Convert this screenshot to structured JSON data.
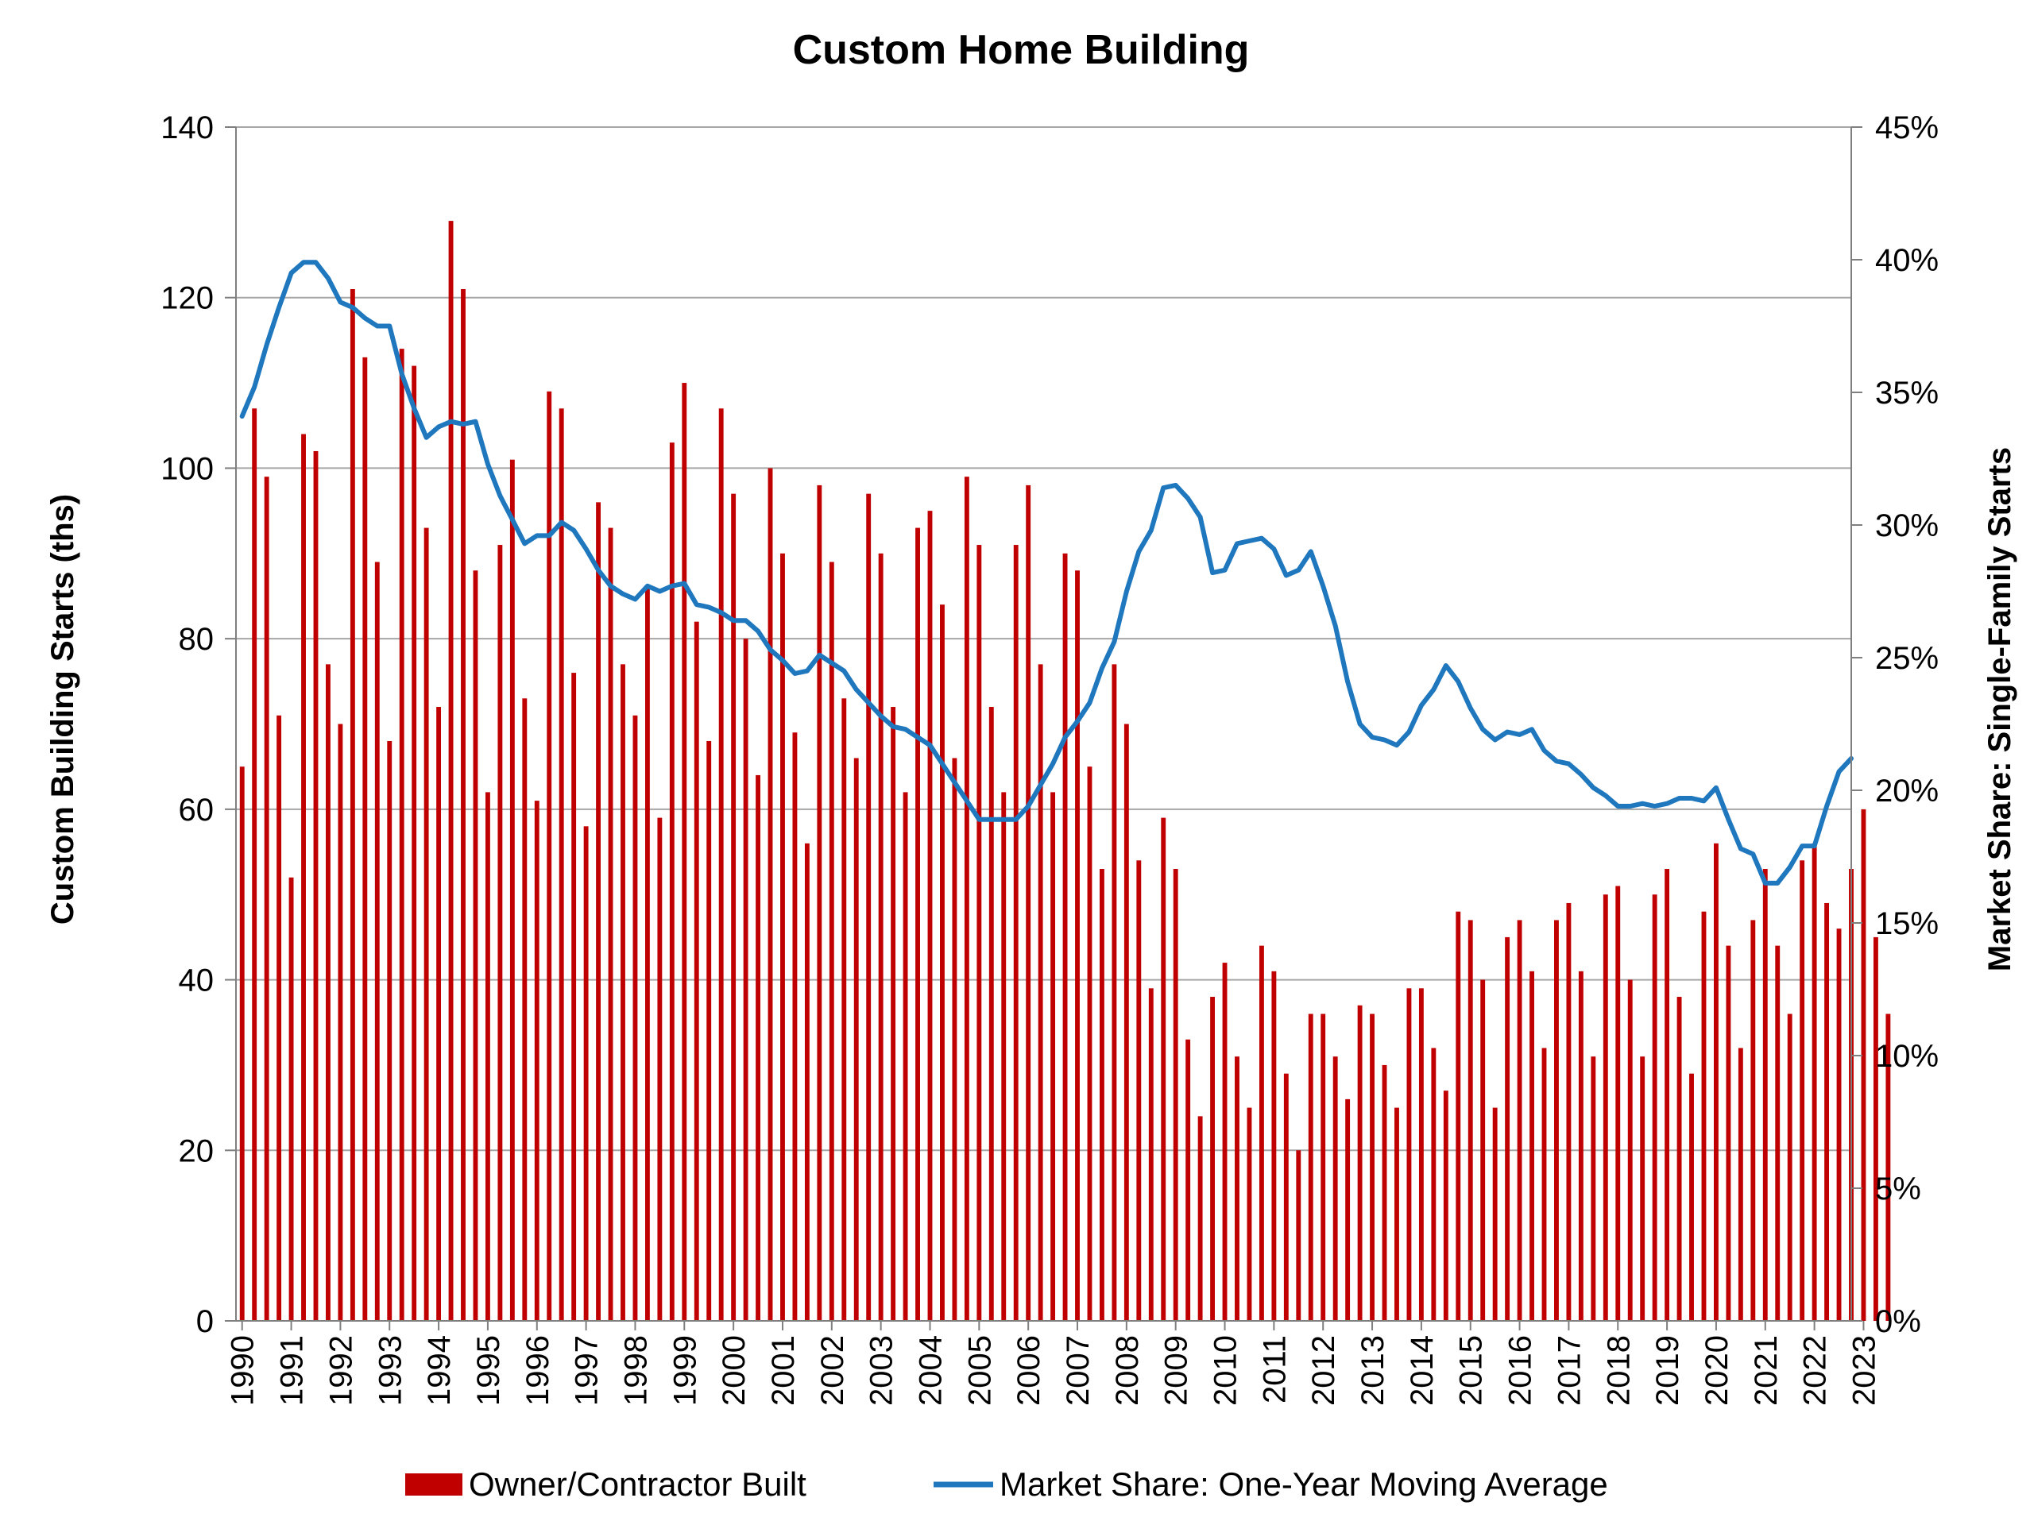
{
  "chart_data": {
    "type": "bar",
    "title": "Custom Home Building",
    "ylabel_left": "Custom Building Starts (ths)",
    "ylabel_right": "Market Share: Single-Family Starts",
    "ylim_left": [
      0,
      140
    ],
    "yticks_left": [
      "0",
      "20",
      "40",
      "60",
      "80",
      "100",
      "120",
      "140"
    ],
    "ylim_right": [
      0,
      0.45
    ],
    "yticks_right": [
      "0%",
      "5%",
      "10%",
      "15%",
      "20%",
      "25%",
      "30%",
      "35%",
      "40%",
      "45%"
    ],
    "x_start_year": 1990,
    "x_tick_labels": [
      "1990",
      "1991",
      "1992",
      "1993",
      "1994",
      "1995",
      "1996",
      "1997",
      "1998",
      "1999",
      "2000",
      "2001",
      "2002",
      "2003",
      "2004",
      "2005",
      "2006",
      "2007",
      "2008",
      "2009",
      "2010",
      "2011",
      "2012",
      "2013",
      "2014",
      "2015",
      "2016",
      "2017",
      "2018",
      "2019",
      "2020",
      "2021",
      "2022",
      "2023"
    ],
    "grid": true,
    "legend_position": "bottom",
    "colors": {
      "bars": "#C00000",
      "line": "#1F77BE",
      "grid": "#A6A6A6",
      "axis": "#7F7F7F"
    },
    "series": [
      {
        "name": "Owner/Contractor Built",
        "type": "bar",
        "axis": "left",
        "values": [
          65,
          107,
          99,
          71,
          52,
          104,
          102,
          77,
          70,
          121,
          113,
          89,
          68,
          114,
          112,
          93,
          72,
          129,
          121,
          88,
          62,
          91,
          101,
          73,
          61,
          109,
          107,
          76,
          58,
          96,
          93,
          77,
          71,
          86,
          59,
          103,
          110,
          82,
          68,
          107,
          97,
          80,
          64,
          100,
          90,
          69,
          56,
          98,
          89,
          73,
          66,
          97,
          90,
          72,
          62,
          93,
          95,
          84,
          66,
          99,
          91,
          72,
          62,
          91,
          98,
          77,
          62,
          90,
          88,
          65,
          53,
          77,
          70,
          54,
          39,
          59,
          53,
          33,
          24,
          38,
          42,
          31,
          25,
          44,
          41,
          29,
          20,
          36,
          36,
          31,
          26,
          37,
          36,
          30,
          25,
          39,
          39,
          32,
          27,
          48,
          47,
          40,
          25,
          45,
          47,
          41,
          32,
          47,
          49,
          41,
          31,
          50,
          51,
          40,
          31,
          50,
          53,
          38,
          29,
          48,
          56,
          44,
          32,
          47,
          53,
          44,
          36,
          54,
          56,
          49,
          46,
          53,
          60,
          45,
          36
        ]
      },
      {
        "name": "Market Share: One-Year Moving Average",
        "type": "line",
        "axis": "right",
        "values": [
          0.341,
          0.352,
          0.368,
          0.382,
          0.395,
          0.399,
          0.399,
          0.393,
          0.384,
          0.382,
          0.378,
          0.375,
          0.375,
          0.357,
          0.344,
          0.333,
          0.337,
          0.339,
          0.338,
          0.339,
          0.323,
          0.311,
          0.302,
          0.293,
          0.296,
          0.296,
          0.301,
          0.298,
          0.291,
          0.283,
          0.277,
          0.274,
          0.272,
          0.277,
          0.275,
          0.277,
          0.278,
          0.27,
          0.269,
          0.267,
          0.264,
          0.264,
          0.26,
          0.253,
          0.249,
          0.244,
          0.245,
          0.251,
          0.248,
          0.245,
          0.238,
          0.233,
          0.228,
          0.224,
          0.223,
          0.22,
          0.217,
          0.21,
          0.203,
          0.196,
          0.189,
          0.189,
          0.189,
          0.189,
          0.194,
          0.202,
          0.21,
          0.22,
          0.226,
          0.233,
          0.246,
          0.256,
          0.275,
          0.29,
          0.298,
          0.314,
          0.315,
          0.31,
          0.303,
          0.282,
          0.283,
          0.293,
          0.294,
          0.295,
          0.291,
          0.281,
          0.283,
          0.29,
          0.277,
          0.262,
          0.241,
          0.225,
          0.22,
          0.219,
          0.217,
          0.222,
          0.232,
          0.238,
          0.247,
          0.241,
          0.231,
          0.223,
          0.219,
          0.222,
          0.221,
          0.223,
          0.215,
          0.211,
          0.21,
          0.206,
          0.201,
          0.198,
          0.194,
          0.194,
          0.195,
          0.194,
          0.195,
          0.197,
          0.197,
          0.196,
          0.201,
          0.189,
          0.178,
          0.176,
          0.165,
          0.165,
          0.171,
          0.179,
          0.179,
          0.194,
          0.207,
          0.212
        ]
      }
    ]
  }
}
